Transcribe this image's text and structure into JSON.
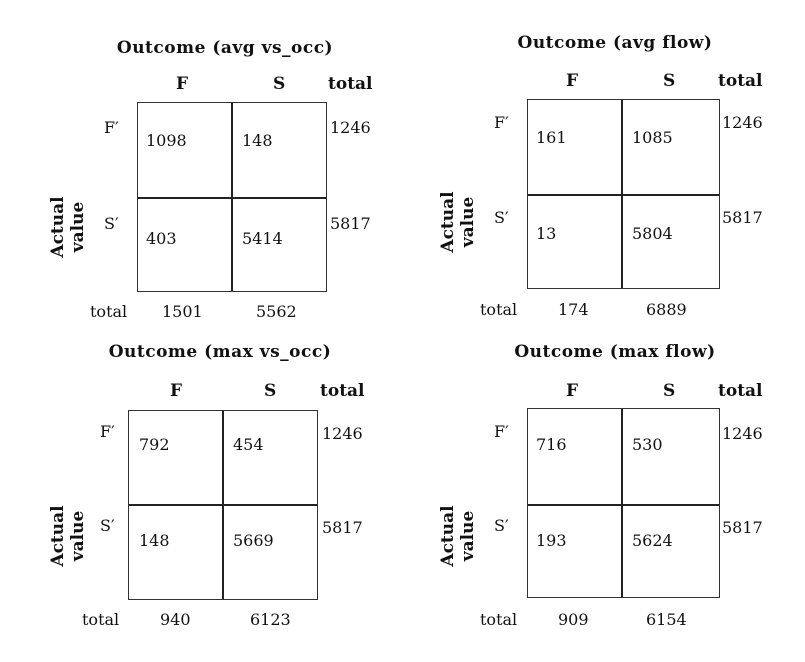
{
  "labels": {
    "col_f": "F",
    "col_s": "S",
    "col_total": "total",
    "row_f": "F′",
    "row_s": "S′",
    "row_total": "total",
    "axis_line1": "Actual",
    "axis_line2": "value"
  },
  "panels": [
    {
      "title": "Outcome (avg vs_occ)",
      "ff": "1098",
      "fs": "148",
      "sf": "403",
      "ss": "5414",
      "row_total_f": "1246",
      "row_total_s": "5817",
      "col_total_f": "1501",
      "col_total_s": "5562"
    },
    {
      "title": "Outcome (avg flow)",
      "ff": "161",
      "fs": "1085",
      "sf": "13",
      "ss": "5804",
      "row_total_f": "1246",
      "row_total_s": "5817",
      "col_total_f": "174",
      "col_total_s": "6889"
    },
    {
      "title": "Outcome (max vs_occ)",
      "ff": "792",
      "fs": "454",
      "sf": "148",
      "ss": "5669",
      "row_total_f": "1246",
      "row_total_s": "5817",
      "col_total_f": "940",
      "col_total_s": "6123"
    },
    {
      "title": "Outcome (max flow)",
      "ff": "716",
      "fs": "530",
      "sf": "193",
      "ss": "5624",
      "row_total_f": "1246",
      "row_total_s": "5817",
      "col_total_f": "909",
      "col_total_s": "6154"
    }
  ]
}
